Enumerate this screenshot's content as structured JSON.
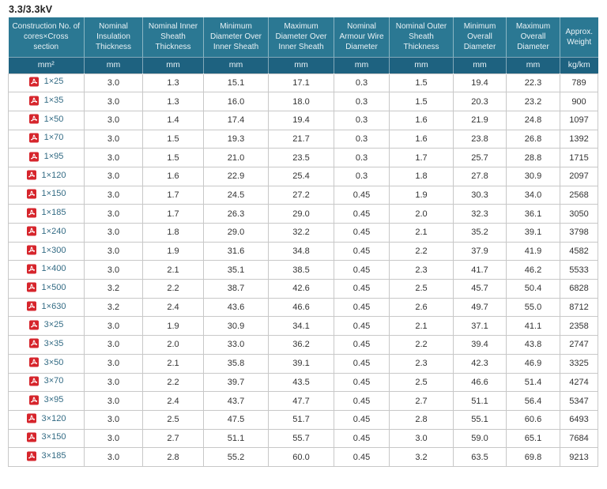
{
  "title": "3.3/3.3kV",
  "colors": {
    "header_bg": "#2b7893",
    "unit_row_bg": "#1e6280",
    "link_color": "#336b84",
    "pdf_icon_red": "#d6252c",
    "cell_border": "#c8c8c8"
  },
  "table": {
    "columns": [
      {
        "label": "Construction No. of cores×Cross section",
        "unit": "mm²"
      },
      {
        "label": "Nominal Insulation Thickness",
        "unit": "mm"
      },
      {
        "label": "Nominal Inner Sheath Thickness",
        "unit": "mm"
      },
      {
        "label": "Minimum Diameter Over Inner Sheath",
        "unit": "mm"
      },
      {
        "label": "Maximum Diameter Over Inner Sheath",
        "unit": "mm"
      },
      {
        "label": "Nominal Armour Wire Diameter",
        "unit": "mm"
      },
      {
        "label": "Nominal Outer Sheath Thickness",
        "unit": "mm"
      },
      {
        "label": "Minimum Overall Diameter",
        "unit": "mm"
      },
      {
        "label": "Maximum Overall Diameter",
        "unit": "mm"
      },
      {
        "label": "Approx. Weight",
        "unit": "kg/km"
      }
    ],
    "rows": [
      {
        "size": "1×25",
        "icon": "pdf-file-icon",
        "values": [
          "3.0",
          "1.3",
          "15.1",
          "17.1",
          "0.3",
          "1.5",
          "19.4",
          "22.3",
          "789"
        ]
      },
      {
        "size": "1×35",
        "icon": "pdf-file-icon",
        "values": [
          "3.0",
          "1.3",
          "16.0",
          "18.0",
          "0.3",
          "1.5",
          "20.3",
          "23.2",
          "900"
        ]
      },
      {
        "size": "1×50",
        "icon": "pdf-file-icon",
        "values": [
          "3.0",
          "1.4",
          "17.4",
          "19.4",
          "0.3",
          "1.6",
          "21.9",
          "24.8",
          "1097"
        ]
      },
      {
        "size": "1×70",
        "icon": "pdf-file-icon",
        "values": [
          "3.0",
          "1.5",
          "19.3",
          "21.7",
          "0.3",
          "1.6",
          "23.8",
          "26.8",
          "1392"
        ]
      },
      {
        "size": "1×95",
        "icon": "pdf-file-icon",
        "values": [
          "3.0",
          "1.5",
          "21.0",
          "23.5",
          "0.3",
          "1.7",
          "25.7",
          "28.8",
          "1715"
        ]
      },
      {
        "size": "1×120",
        "icon": "pdf-file-icon",
        "values": [
          "3.0",
          "1.6",
          "22.9",
          "25.4",
          "0.3",
          "1.8",
          "27.8",
          "30.9",
          "2097"
        ]
      },
      {
        "size": "1×150",
        "icon": "pdf-file-icon",
        "values": [
          "3.0",
          "1.7",
          "24.5",
          "27.2",
          "0.45",
          "1.9",
          "30.3",
          "34.0",
          "2568"
        ]
      },
      {
        "size": "1×185",
        "icon": "pdf-file-icon",
        "values": [
          "3.0",
          "1.7",
          "26.3",
          "29.0",
          "0.45",
          "2.0",
          "32.3",
          "36.1",
          "3050"
        ]
      },
      {
        "size": "1×240",
        "icon": "pdf-file-icon",
        "values": [
          "3.0",
          "1.8",
          "29.0",
          "32.2",
          "0.45",
          "2.1",
          "35.2",
          "39.1",
          "3798"
        ]
      },
      {
        "size": "1×300",
        "icon": "pdf-file-icon",
        "values": [
          "3.0",
          "1.9",
          "31.6",
          "34.8",
          "0.45",
          "2.2",
          "37.9",
          "41.9",
          "4582"
        ]
      },
      {
        "size": "1×400",
        "icon": "pdf-file-icon",
        "values": [
          "3.0",
          "2.1",
          "35.1",
          "38.5",
          "0.45",
          "2.3",
          "41.7",
          "46.2",
          "5533"
        ]
      },
      {
        "size": "1×500",
        "icon": "pdf-file-icon",
        "values": [
          "3.2",
          "2.2",
          "38.7",
          "42.6",
          "0.45",
          "2.5",
          "45.7",
          "50.4",
          "6828"
        ]
      },
      {
        "size": "1×630",
        "icon": "pdf-file-icon",
        "values": [
          "3.2",
          "2.4",
          "43.6",
          "46.6",
          "0.45",
          "2.6",
          "49.7",
          "55.0",
          "8712"
        ]
      },
      {
        "size": "3×25",
        "icon": "pdf-file-icon",
        "values": [
          "3.0",
          "1.9",
          "30.9",
          "34.1",
          "0.45",
          "2.1",
          "37.1",
          "41.1",
          "2358"
        ]
      },
      {
        "size": "3×35",
        "icon": "pdf-file-icon",
        "values": [
          "3.0",
          "2.0",
          "33.0",
          "36.2",
          "0.45",
          "2.2",
          "39.4",
          "43.8",
          "2747"
        ]
      },
      {
        "size": "3×50",
        "icon": "pdf-file-icon",
        "values": [
          "3.0",
          "2.1",
          "35.8",
          "39.1",
          "0.45",
          "2.3",
          "42.3",
          "46.9",
          "3325"
        ]
      },
      {
        "size": "3×70",
        "icon": "pdf-file-icon",
        "values": [
          "3.0",
          "2.2",
          "39.7",
          "43.5",
          "0.45",
          "2.5",
          "46.6",
          "51.4",
          "4274"
        ]
      },
      {
        "size": "3×95",
        "icon": "pdf-file-icon",
        "values": [
          "3.0",
          "2.4",
          "43.7",
          "47.7",
          "0.45",
          "2.7",
          "51.1",
          "56.4",
          "5347"
        ]
      },
      {
        "size": "3×120",
        "icon": "pdf-file-icon",
        "values": [
          "3.0",
          "2.5",
          "47.5",
          "51.7",
          "0.45",
          "2.8",
          "55.1",
          "60.6",
          "6493"
        ]
      },
      {
        "size": "3×150",
        "icon": "pdf-file-icon",
        "values": [
          "3.0",
          "2.7",
          "51.1",
          "55.7",
          "0.45",
          "3.0",
          "59.0",
          "65.1",
          "7684"
        ]
      },
      {
        "size": "3×185",
        "icon": "pdf-file-icon",
        "values": [
          "3.0",
          "2.8",
          "55.2",
          "60.0",
          "0.45",
          "3.2",
          "63.5",
          "69.8",
          "9213"
        ]
      }
    ]
  }
}
